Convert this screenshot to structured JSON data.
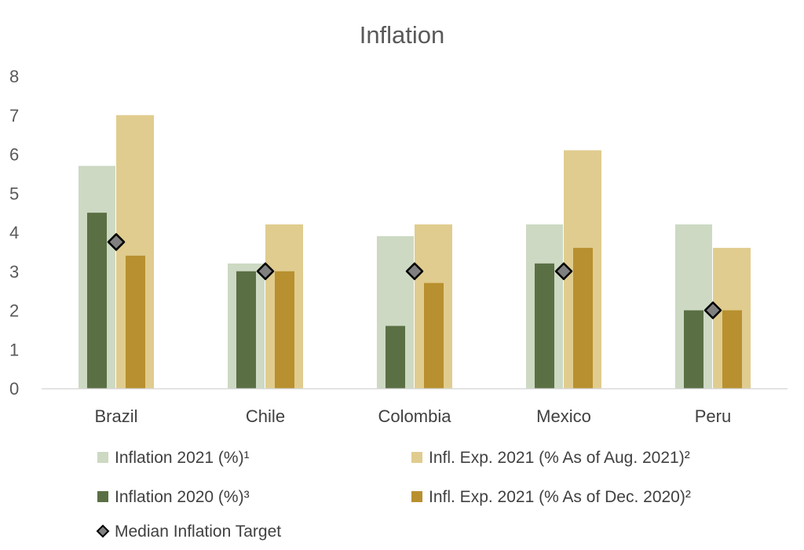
{
  "chart_data": {
    "type": "bar",
    "title": "Inflation",
    "xlabel": "",
    "ylabel": "",
    "ylim": [
      0,
      8
    ],
    "yticks": [
      "0",
      "1",
      "2",
      "3",
      "4",
      "5",
      "6",
      "7",
      "8"
    ],
    "grid": false,
    "legend_placement": "bottom",
    "categories": [
      "Brazil",
      "Chile",
      "Colombia",
      "Mexico",
      "Peru"
    ],
    "series": [
      {
        "name": "Inflation 2021 (%)¹",
        "color": "#cdd9c3",
        "values": [
          5.7,
          3.2,
          3.9,
          4.2,
          4.2
        ]
      },
      {
        "name": "Infl. Exp. 2021 (% As of Aug. 2021)²",
        "color": "#e0cc8e",
        "values": [
          7.0,
          4.2,
          4.2,
          6.1,
          3.6
        ]
      },
      {
        "name": "Inflation 2020 (%)³",
        "color": "#5a7044",
        "values": [
          4.5,
          3.0,
          1.6,
          3.2,
          2.0
        ]
      },
      {
        "name": "Infl. Exp. 2021 (% As of Dec. 2020)²",
        "color": "#b8902f",
        "values": [
          3.4,
          3.0,
          2.7,
          3.6,
          2.0
        ]
      },
      {
        "name": "Median Inflation Target",
        "color": "#808080",
        "marker": "diamond",
        "values": [
          3.75,
          3.0,
          3.0,
          3.0,
          2.0
        ]
      }
    ]
  }
}
